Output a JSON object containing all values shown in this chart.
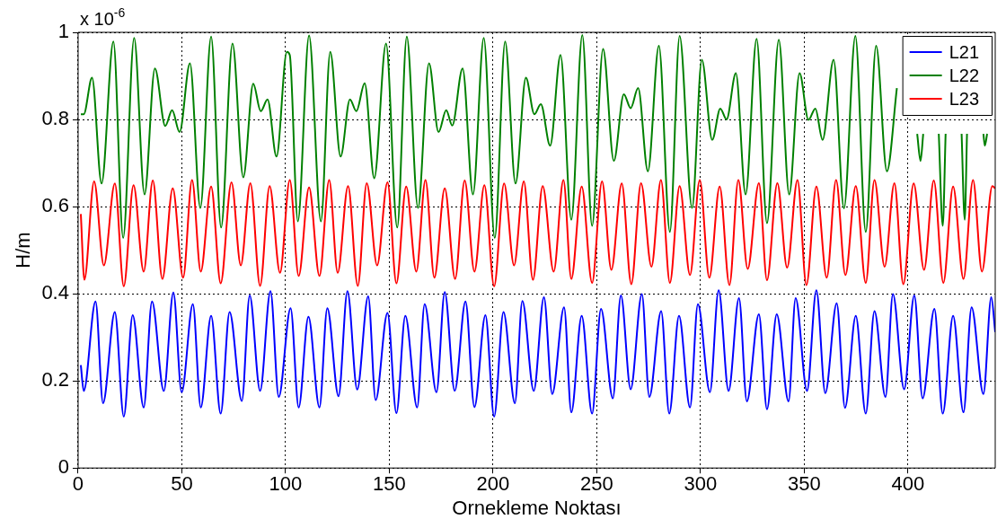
{
  "chart_data": {
    "type": "line",
    "xlabel": "Ornekleme Noktası",
    "ylabel": "H/m",
    "annotations": [
      "x 10$^{-6}$"
    ],
    "xlim": [
      0,
      442
    ],
    "xticks": [
      0,
      50,
      100,
      150,
      200,
      250,
      300,
      350,
      400
    ],
    "ylim": [
      0,
      1
    ],
    "yticks": [
      0,
      0.2,
      0.4,
      0.6,
      0.8,
      1
    ],
    "grid": true,
    "legend": "top right",
    "line_style": "solid",
    "marker": "none",
    "series": [
      {
        "name": "L21",
        "color": "#0000ff",
        "x": [
          1.3,
          2.7,
          8.4,
          12,
          17.7,
          22,
          26.3,
          31.6,
          35.6,
          41.3,
          45.9,
          49.9,
          55.3,
          59.1,
          64.1,
          68.7,
          73,
          78.9,
          82.7,
          87.7,
          92.7,
          96.7,
          102.4,
          106.3,
          111,
          116.3,
          120.1,
          125.5,
          129.8,
          134.5,
          139.8,
          143.4,
          149.1,
          153.4,
          157.7,
          163.4,
          167,
          172.7,
          176.7,
          181.5,
          186.7,
          191,
          196.3,
          200.5,
          205,
          210.5,
          214.1,
          219.6,
          224.5,
          228.5,
          234.2,
          237.7,
          242.7,
          247.7,
          252,
          257.7,
          261.6,
          266.3,
          271.7,
          275.3,
          281,
          284.9,
          289.6,
          294.9,
          298.7,
          304.5,
          308.7,
          313.5,
          318.5,
          322.3,
          328.1,
          332,
          336.7,
          342.4,
          345.8,
          351.3,
          355.8,
          360.1,
          365.6,
          369.6,
          374.8,
          379.6,
          383.8,
          389.1,
          392.7,
          398.1,
          403,
          407,
          412.7,
          416.7,
          421.7,
          426.7,
          430.6,
          436.3,
          440.1,
          442
        ],
        "values": [
          0.236,
          0.177,
          0.382,
          0.149,
          0.358,
          0.118,
          0.351,
          0.139,
          0.382,
          0.177,
          0.403,
          0.174,
          0.376,
          0.139,
          0.349,
          0.125,
          0.358,
          0.154,
          0.396,
          0.177,
          0.406,
          0.163,
          0.367,
          0.139,
          0.347,
          0.139,
          0.367,
          0.165,
          0.406,
          0.18,
          0.394,
          0.156,
          0.356,
          0.126,
          0.349,
          0.139,
          0.376,
          0.174,
          0.404,
          0.177,
          0.382,
          0.14,
          0.351,
          0.118,
          0.358,
          0.149,
          0.383,
          0.177,
          0.392,
          0.17,
          0.369,
          0.128,
          0.349,
          0.125,
          0.365,
          0.16,
          0.396,
          0.181,
          0.399,
          0.163,
          0.36,
          0.125,
          0.349,
          0.139,
          0.376,
          0.174,
          0.408,
          0.177,
          0.39,
          0.153,
          0.353,
          0.135,
          0.353,
          0.153,
          0.39,
          0.177,
          0.408,
          0.172,
          0.378,
          0.138,
          0.349,
          0.125,
          0.36,
          0.163,
          0.399,
          0.181,
          0.396,
          0.16,
          0.365,
          0.125,
          0.349,
          0.128,
          0.369,
          0.17,
          0.392,
          0.312
        ]
      },
      {
        "name": "L22",
        "color": "#008000",
        "x": [
          1.3,
          2.7,
          6.7,
          11.3,
          17,
          21.7,
          27,
          32,
          37,
          42,
          45.3,
          48.9,
          53.9,
          58.9,
          64.1,
          68.9,
          74.4,
          79.6,
          84.4,
          88,
          91.3,
          95.6,
          100.6,
          102,
          105.9,
          111.3,
          117,
          121.5,
          126.5,
          131,
          134.1,
          138.1,
          142.7,
          148.4,
          153.8,
          158.4,
          163.8,
          169.1,
          173.7,
          177.4,
          180.3,
          185.3,
          190.3,
          195.5,
          200.8,
          205.8,
          210.8,
          215.8,
          219.9,
          223,
          227.5,
          232.5,
          237.7,
          243,
          247.7,
          253,
          258.2,
          263,
          266.3,
          269.9,
          274.6,
          279.9,
          285.2,
          289.9,
          295.9,
          300.6,
          305.6,
          309.5,
          312.5,
          317,
          321.7,
          327,
          332,
          337.7,
          342.7,
          347.7,
          352,
          355.3,
          358.8,
          364.1,
          369.1,
          374.6,
          379.6,
          384.6,
          389.8,
          394.6,
          null,
          404.4,
          406,
          407.3,
          null,
          414.8,
          416.7,
          418.1,
          null,
          425.8,
          427.3,
          428.4,
          null,
          436.3,
          437,
          438.1
        ],
        "values": [
          0.812,
          0.812,
          0.896,
          0.653,
          0.979,
          0.528,
          0.987,
          0.628,
          0.917,
          0.785,
          0.821,
          0.771,
          0.929,
          0.597,
          0.99,
          0.552,
          0.974,
          0.667,
          0.882,
          0.819,
          0.846,
          0.715,
          0.955,
          0.948,
          0.566,
          0.993,
          0.566,
          0.955,
          0.715,
          0.846,
          0.819,
          0.883,
          0.665,
          0.974,
          0.552,
          0.99,
          0.597,
          0.929,
          0.771,
          0.821,
          0.786,
          0.917,
          0.628,
          0.987,
          0.528,
          0.979,
          0.653,
          0.896,
          0.812,
          0.835,
          0.74,
          0.948,
          0.57,
          0.994,
          0.556,
          0.962,
          0.705,
          0.858,
          0.826,
          0.872,
          0.681,
          0.969,
          0.542,
          0.992,
          0.597,
          0.937,
          0.753,
          0.825,
          0.8,
          0.906,
          0.628,
          0.985,
          0.562,
          0.983,
          0.628,
          0.906,
          0.799,
          0.825,
          0.753,
          0.937,
          0.596,
          0.992,
          0.542,
          0.969,
          0.681,
          0.872,
          null,
          0.767,
          0.705,
          0.767,
          null,
          0.767,
          0.556,
          0.767,
          null,
          0.767,
          0.57,
          0.767,
          null,
          0.767,
          0.74,
          0.767
        ]
      },
      {
        "name": "L23",
        "color": "#ff0000",
        "x": [
          1.3,
          3,
          7.7,
          12.4,
          17.7,
          22,
          26.7,
          31.6,
          36,
          40.6,
          45.6,
          50.6,
          54.9,
          59.1,
          64.1,
          68.7,
          73.9,
          78.4,
          83,
          87.7,
          92.3,
          97.3,
          102,
          106.3,
          111.3,
          116.3,
          121,
          125.1,
          130.1,
          134.8,
          139.1,
          144.1,
          149.1,
          153.4,
          158.1,
          163,
          167.4,
          171.7,
          176.7,
          181.7,
          186.3,
          191,
          195.8,
          200.5,
          205.3,
          210.1,
          214.8,
          219.2,
          223.9,
          229.2,
          233.9,
          237.7,
          242.7,
          247.7,
          252.5,
          257,
          262,
          266.6,
          271.3,
          276.3,
          280.9,
          285.2,
          289.9,
          294.9,
          299.6,
          304.2,
          309.2,
          313.9,
          318.2,
          322.7,
          328.1,
          332,
          337,
          341.7,
          346.7,
          351,
          355.8,
          360.8,
          365.3,
          369.8,
          374.8,
          379.6,
          383.8,
          388.7,
          393.4,
          397.7,
          402.7,
          407.7,
          412.4,
          417,
          421.7,
          426.7,
          431.3,
          435.6,
          440.6,
          442
        ],
        "values": [
          0.583,
          0.432,
          0.658,
          0.465,
          0.653,
          0.417,
          0.649,
          0.451,
          0.66,
          0.434,
          0.642,
          0.437,
          0.661,
          0.451,
          0.646,
          0.424,
          0.656,
          0.465,
          0.654,
          0.418,
          0.647,
          0.448,
          0.661,
          0.441,
          0.644,
          0.441,
          0.661,
          0.448,
          0.647,
          0.418,
          0.654,
          0.465,
          0.656,
          0.424,
          0.646,
          0.451,
          0.661,
          0.437,
          0.642,
          0.434,
          0.66,
          0.451,
          0.649,
          0.417,
          0.653,
          0.465,
          0.658,
          0.432,
          0.647,
          0.451,
          0.661,
          0.434,
          0.646,
          0.425,
          0.658,
          0.455,
          0.653,
          0.422,
          0.654,
          0.462,
          0.661,
          0.425,
          0.647,
          0.443,
          0.661,
          0.437,
          0.646,
          0.42,
          0.661,
          0.457,
          0.654,
          0.431,
          0.654,
          0.46,
          0.661,
          0.42,
          0.646,
          0.437,
          0.661,
          0.443,
          0.647,
          0.425,
          0.661,
          0.462,
          0.654,
          0.422,
          0.653,
          0.455,
          0.66,
          0.425,
          0.646,
          0.434,
          0.661,
          0.451,
          0.647,
          0.642
        ]
      }
    ]
  }
}
